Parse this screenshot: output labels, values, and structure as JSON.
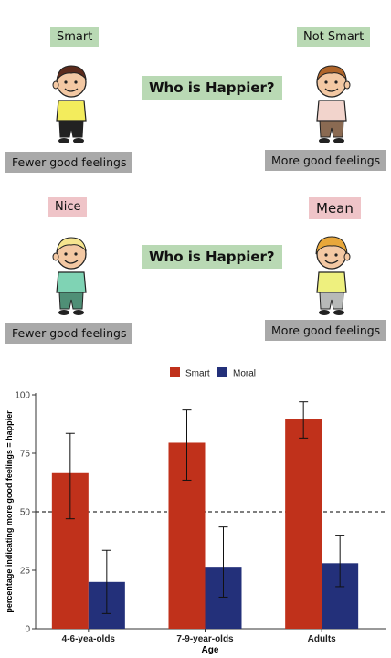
{
  "panels": [
    {
      "left_label": "Smart",
      "right_label": "Not Smart",
      "question": "Who is Happier?",
      "left_caption": "Fewer good feelings",
      "right_caption": "More good feelings"
    },
    {
      "left_label": "Nice",
      "right_label": "Mean",
      "question": "Who is Happier?",
      "left_caption": "Fewer good feelings",
      "right_caption": "More good feelings"
    }
  ],
  "colors": {
    "label_green": "#b9d9b4",
    "label_pink": "#efc4c8",
    "caption_grey": "#a9a9a9"
  },
  "chart_data": {
    "type": "bar",
    "categories": [
      "4-6-yea-olds",
      "7-9-year-olds",
      "Adults"
    ],
    "series": [
      {
        "name": "Smart",
        "color": "#c0311b",
        "values": [
          66.5,
          79.5,
          89.5
        ],
        "err_low": [
          47,
          63.5,
          81.5
        ],
        "err_high": [
          83.5,
          93.5,
          97
        ]
      },
      {
        "name": "Moral",
        "color": "#23307a",
        "values": [
          20,
          26.5,
          28
        ],
        "err_low": [
          6.5,
          13.5,
          18
        ],
        "err_high": [
          33.5,
          43.5,
          40
        ]
      }
    ],
    "xlabel": "Age",
    "ylabel": "percentage indicating more good feelings = happier",
    "ylim": [
      0,
      100
    ],
    "yticks": [
      0,
      25,
      50,
      75,
      100
    ],
    "reference_line": 50,
    "legend_position": "top"
  }
}
